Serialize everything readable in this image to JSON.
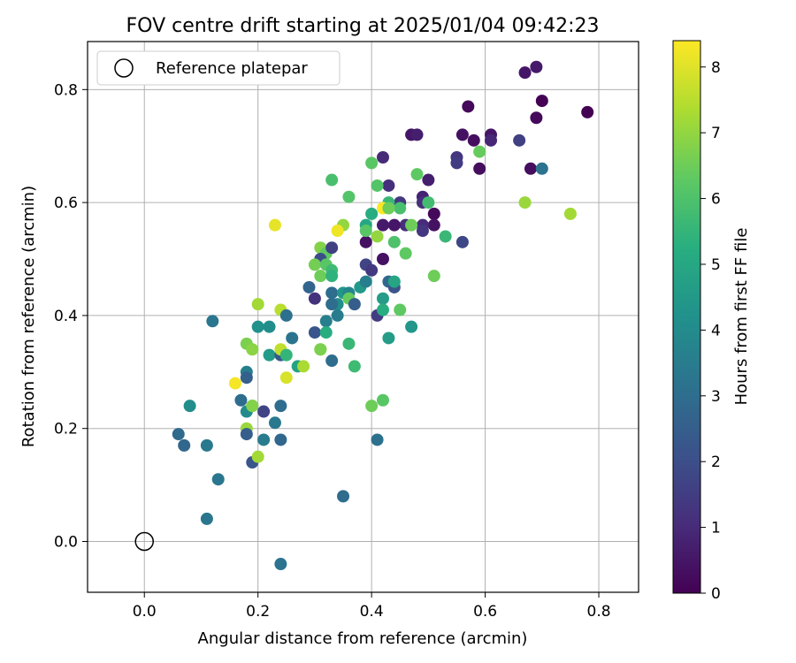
{
  "chart_data": {
    "type": "scatter",
    "title": "FOV centre drift starting at 2025/01/04 09:42:23",
    "xlabel": "Angular distance from reference (arcmin)",
    "ylabel": "Rotation from reference (arcmin)",
    "xlim": [
      -0.1,
      0.87
    ],
    "ylim": [
      -0.09,
      0.885
    ],
    "xticks": [
      "0.0",
      "0.2",
      "0.4",
      "0.6",
      "0.8"
    ],
    "yticks": [
      "0.0",
      "0.2",
      "0.4",
      "0.6",
      "0.8"
    ],
    "grid": true,
    "legend": {
      "placement": "top-left",
      "entries": [
        "Reference platepar"
      ]
    },
    "reference_point": {
      "x": 0.0,
      "y": 0.0,
      "marker": "open circle"
    },
    "colorbar": {
      "label": "Hours from first FF file",
      "colormap": "viridis",
      "range": [
        0,
        8.4
      ],
      "ticks": [
        "0",
        "1",
        "2",
        "3",
        "4",
        "5",
        "6",
        "7",
        "8"
      ]
    },
    "points": [
      {
        "x": 0.67,
        "y": 0.83,
        "h": 0.5
      },
      {
        "x": 0.69,
        "y": 0.84,
        "h": 0.6
      },
      {
        "x": 0.7,
        "y": 0.78,
        "h": 0.0
      },
      {
        "x": 0.69,
        "y": 0.75,
        "h": 0.2
      },
      {
        "x": 0.78,
        "y": 0.76,
        "h": 0.0
      },
      {
        "x": 0.68,
        "y": 0.66,
        "h": 0.3
      },
      {
        "x": 0.7,
        "y": 0.66,
        "h": 3.2
      },
      {
        "x": 0.66,
        "y": 0.71,
        "h": 1.6
      },
      {
        "x": 0.57,
        "y": 0.77,
        "h": 0.2
      },
      {
        "x": 0.58,
        "y": 0.71,
        "h": 0.3
      },
      {
        "x": 0.56,
        "y": 0.72,
        "h": 0.4
      },
      {
        "x": 0.61,
        "y": 0.72,
        "h": 0.5
      },
      {
        "x": 0.61,
        "y": 0.71,
        "h": 0.9
      },
      {
        "x": 0.59,
        "y": 0.66,
        "h": 0.3
      },
      {
        "x": 0.55,
        "y": 0.68,
        "h": 1.3
      },
      {
        "x": 0.55,
        "y": 0.67,
        "h": 1.5
      },
      {
        "x": 0.59,
        "y": 0.69,
        "h": 6.4
      },
      {
        "x": 0.67,
        "y": 0.6,
        "h": 7.1
      },
      {
        "x": 0.75,
        "y": 0.58,
        "h": 7.2
      },
      {
        "x": 0.47,
        "y": 0.72,
        "h": 0.5
      },
      {
        "x": 0.48,
        "y": 0.72,
        "h": 0.7
      },
      {
        "x": 0.42,
        "y": 0.68,
        "h": 1.0
      },
      {
        "x": 0.5,
        "y": 0.64,
        "h": 0.7
      },
      {
        "x": 0.49,
        "y": 0.61,
        "h": 0.8
      },
      {
        "x": 0.49,
        "y": 0.6,
        "h": 1.1
      },
      {
        "x": 0.51,
        "y": 0.58,
        "h": 0.2
      },
      {
        "x": 0.51,
        "y": 0.56,
        "h": 0.4
      },
      {
        "x": 0.49,
        "y": 0.56,
        "h": 1.0
      },
      {
        "x": 0.49,
        "y": 0.55,
        "h": 1.3
      },
      {
        "x": 0.45,
        "y": 0.6,
        "h": 1.4
      },
      {
        "x": 0.46,
        "y": 0.56,
        "h": 1.1
      },
      {
        "x": 0.43,
        "y": 0.63,
        "h": 1.1
      },
      {
        "x": 0.44,
        "y": 0.56,
        "h": 0.5
      },
      {
        "x": 0.42,
        "y": 0.56,
        "h": 0.6
      },
      {
        "x": 0.39,
        "y": 0.53,
        "h": 0.4
      },
      {
        "x": 0.42,
        "y": 0.5,
        "h": 0.4
      },
      {
        "x": 0.39,
        "y": 0.49,
        "h": 1.7
      },
      {
        "x": 0.4,
        "y": 0.48,
        "h": 1.4
      },
      {
        "x": 0.56,
        "y": 0.53,
        "h": 1.8
      },
      {
        "x": 0.48,
        "y": 0.65,
        "h": 6.3
      },
      {
        "x": 0.4,
        "y": 0.67,
        "h": 6.2
      },
      {
        "x": 0.5,
        "y": 0.6,
        "h": 5.8
      },
      {
        "x": 0.45,
        "y": 0.59,
        "h": 5.9
      },
      {
        "x": 0.43,
        "y": 0.6,
        "h": 5.6
      },
      {
        "x": 0.41,
        "y": 0.63,
        "h": 6.1
      },
      {
        "x": 0.42,
        "y": 0.59,
        "h": 8.4
      },
      {
        "x": 0.43,
        "y": 0.59,
        "h": 6.5
      },
      {
        "x": 0.41,
        "y": 0.54,
        "h": 7.0
      },
      {
        "x": 0.4,
        "y": 0.58,
        "h": 5.2
      },
      {
        "x": 0.39,
        "y": 0.56,
        "h": 5.0
      },
      {
        "x": 0.39,
        "y": 0.55,
        "h": 6.2
      },
      {
        "x": 0.44,
        "y": 0.53,
        "h": 6.0
      },
      {
        "x": 0.46,
        "y": 0.51,
        "h": 6.3
      },
      {
        "x": 0.53,
        "y": 0.54,
        "h": 5.6
      },
      {
        "x": 0.51,
        "y": 0.47,
        "h": 6.5
      },
      {
        "x": 0.47,
        "y": 0.56,
        "h": 6.5
      },
      {
        "x": 0.36,
        "y": 0.61,
        "h": 6.1
      },
      {
        "x": 0.33,
        "y": 0.64,
        "h": 5.9
      },
      {
        "x": 0.35,
        "y": 0.56,
        "h": 7.0
      },
      {
        "x": 0.34,
        "y": 0.55,
        "h": 8.2
      },
      {
        "x": 0.23,
        "y": 0.56,
        "h": 8.1
      },
      {
        "x": 0.31,
        "y": 0.52,
        "h": 6.8
      },
      {
        "x": 0.32,
        "y": 0.51,
        "h": 6.3
      },
      {
        "x": 0.33,
        "y": 0.52,
        "h": 1.6
      },
      {
        "x": 0.31,
        "y": 0.5,
        "h": 2.0
      },
      {
        "x": 0.3,
        "y": 0.49,
        "h": 6.6
      },
      {
        "x": 0.32,
        "y": 0.49,
        "h": 6.2
      },
      {
        "x": 0.33,
        "y": 0.48,
        "h": 5.7
      },
      {
        "x": 0.31,
        "y": 0.47,
        "h": 6.5
      },
      {
        "x": 0.33,
        "y": 0.47,
        "h": 5.4
      },
      {
        "x": 0.29,
        "y": 0.45,
        "h": 2.7
      },
      {
        "x": 0.3,
        "y": 0.43,
        "h": 1.2
      },
      {
        "x": 0.33,
        "y": 0.44,
        "h": 3.0
      },
      {
        "x": 0.34,
        "y": 0.42,
        "h": 4.1
      },
      {
        "x": 0.33,
        "y": 0.42,
        "h": 3.0
      },
      {
        "x": 0.35,
        "y": 0.44,
        "h": 4.4
      },
      {
        "x": 0.36,
        "y": 0.44,
        "h": 3.8
      },
      {
        "x": 0.36,
        "y": 0.43,
        "h": 6.4
      },
      {
        "x": 0.37,
        "y": 0.42,
        "h": 2.5
      },
      {
        "x": 0.34,
        "y": 0.4,
        "h": 3.5
      },
      {
        "x": 0.38,
        "y": 0.45,
        "h": 4.5
      },
      {
        "x": 0.39,
        "y": 0.46,
        "h": 3.6
      },
      {
        "x": 0.41,
        "y": 0.4,
        "h": 1.5
      },
      {
        "x": 0.42,
        "y": 0.43,
        "h": 4.6
      },
      {
        "x": 0.43,
        "y": 0.46,
        "h": 2.8
      },
      {
        "x": 0.44,
        "y": 0.45,
        "h": 2.2
      },
      {
        "x": 0.44,
        "y": 0.46,
        "h": 4.9
      },
      {
        "x": 0.42,
        "y": 0.41,
        "h": 5.2
      },
      {
        "x": 0.45,
        "y": 0.41,
        "h": 6.3
      },
      {
        "x": 0.47,
        "y": 0.38,
        "h": 4.4
      },
      {
        "x": 0.43,
        "y": 0.36,
        "h": 4.6
      },
      {
        "x": 0.2,
        "y": 0.42,
        "h": 7.2
      },
      {
        "x": 0.24,
        "y": 0.41,
        "h": 7.5
      },
      {
        "x": 0.25,
        "y": 0.4,
        "h": 3.1
      },
      {
        "x": 0.2,
        "y": 0.38,
        "h": 4.2
      },
      {
        "x": 0.22,
        "y": 0.38,
        "h": 4.1
      },
      {
        "x": 0.26,
        "y": 0.36,
        "h": 3.2
      },
      {
        "x": 0.12,
        "y": 0.39,
        "h": 3.3
      },
      {
        "x": 0.18,
        "y": 0.35,
        "h": 6.7
      },
      {
        "x": 0.19,
        "y": 0.34,
        "h": 6.9
      },
      {
        "x": 0.22,
        "y": 0.33,
        "h": 4.6
      },
      {
        "x": 0.24,
        "y": 0.33,
        "h": 2.3
      },
      {
        "x": 0.24,
        "y": 0.34,
        "h": 7.6
      },
      {
        "x": 0.25,
        "y": 0.33,
        "h": 5.5
      },
      {
        "x": 0.27,
        "y": 0.31,
        "h": 4.8
      },
      {
        "x": 0.28,
        "y": 0.31,
        "h": 7.3
      },
      {
        "x": 0.3,
        "y": 0.37,
        "h": 2.2
      },
      {
        "x": 0.32,
        "y": 0.39,
        "h": 3.6
      },
      {
        "x": 0.32,
        "y": 0.37,
        "h": 5.2
      },
      {
        "x": 0.31,
        "y": 0.34,
        "h": 7.0
      },
      {
        "x": 0.31,
        "y": 0.34,
        "h": 6.7
      },
      {
        "x": 0.33,
        "y": 0.32,
        "h": 3.0
      },
      {
        "x": 0.36,
        "y": 0.35,
        "h": 5.6
      },
      {
        "x": 0.37,
        "y": 0.31,
        "h": 5.7
      },
      {
        "x": 0.18,
        "y": 0.3,
        "h": 3.6
      },
      {
        "x": 0.18,
        "y": 0.29,
        "h": 2.6
      },
      {
        "x": 0.16,
        "y": 0.28,
        "h": 8.3
      },
      {
        "x": 0.25,
        "y": 0.29,
        "h": 7.9
      },
      {
        "x": 0.17,
        "y": 0.25,
        "h": 3.0
      },
      {
        "x": 0.18,
        "y": 0.23,
        "h": 4.0
      },
      {
        "x": 0.19,
        "y": 0.24,
        "h": 4.6
      },
      {
        "x": 0.19,
        "y": 0.24,
        "h": 6.8
      },
      {
        "x": 0.21,
        "y": 0.23,
        "h": 1.7
      },
      {
        "x": 0.24,
        "y": 0.24,
        "h": 3.0
      },
      {
        "x": 0.23,
        "y": 0.21,
        "h": 3.4
      },
      {
        "x": 0.18,
        "y": 0.2,
        "h": 7.1
      },
      {
        "x": 0.18,
        "y": 0.19,
        "h": 2.5
      },
      {
        "x": 0.21,
        "y": 0.18,
        "h": 3.5
      },
      {
        "x": 0.24,
        "y": 0.18,
        "h": 2.8
      },
      {
        "x": 0.19,
        "y": 0.14,
        "h": 2.2
      },
      {
        "x": 0.2,
        "y": 0.15,
        "h": 7.2
      },
      {
        "x": 0.06,
        "y": 0.19,
        "h": 2.9
      },
      {
        "x": 0.07,
        "y": 0.17,
        "h": 2.8
      },
      {
        "x": 0.08,
        "y": 0.24,
        "h": 4.1
      },
      {
        "x": 0.11,
        "y": 0.17,
        "h": 3.4
      },
      {
        "x": 0.13,
        "y": 0.11,
        "h": 3.3
      },
      {
        "x": 0.11,
        "y": 0.04,
        "h": 3.3
      },
      {
        "x": 0.24,
        "y": -0.04,
        "h": 3.2
      },
      {
        "x": 0.35,
        "y": 0.08,
        "h": 3.0
      },
      {
        "x": 0.41,
        "y": 0.18,
        "h": 3.1
      },
      {
        "x": 0.4,
        "y": 0.24,
        "h": 6.5
      },
      {
        "x": 0.42,
        "y": 0.25,
        "h": 6.2
      }
    ]
  }
}
